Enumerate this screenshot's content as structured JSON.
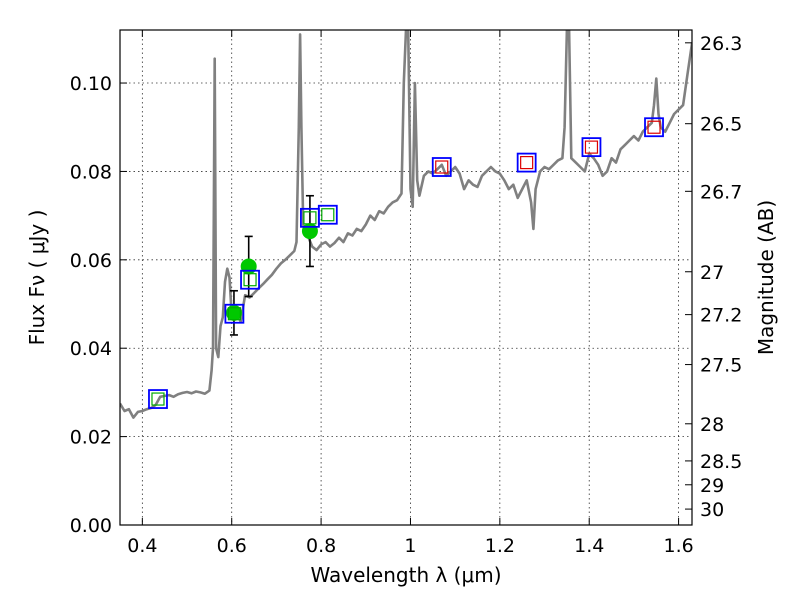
{
  "chart_data": {
    "type": "scatter",
    "title": "",
    "xlabel": "Wavelength  λ (μm)",
    "ylabel": "Flux  Fν  ( μJy )",
    "y2label": "Magnitude (AB)",
    "xlim": [
      0.35,
      1.63
    ],
    "ylim": [
      0.0,
      0.112
    ],
    "grid": true,
    "x_ticks": [
      0.4,
      0.6,
      0.8,
      1.0,
      1.2,
      1.4,
      1.6
    ],
    "x_tick_labels": [
      "0.4",
      "0.6",
      "0.8",
      "1",
      "1.2",
      "1.4",
      "1.6"
    ],
    "y_ticks": [
      0.0,
      0.02,
      0.04,
      0.06,
      0.08,
      0.1
    ],
    "y_tick_labels": [
      "0.00",
      "0.02",
      "0.04",
      "0.06",
      "0.08",
      "0.10"
    ],
    "y2_ticks": [
      {
        "label": "26.3",
        "flux": 0.1091
      },
      {
        "label": "26.5",
        "flux": 0.0908
      },
      {
        "label": "26.7",
        "flux": 0.0755
      },
      {
        "label": "27",
        "flux": 0.0573
      },
      {
        "label": "27.2",
        "flux": 0.0476
      },
      {
        "label": "27.5",
        "flux": 0.0363
      },
      {
        "label": "28",
        "flux": 0.0229
      },
      {
        "label": "28.5",
        "flux": 0.0145
      },
      {
        "label": "29",
        "flux": 0.0091
      },
      {
        "label": "30",
        "flux": 0.0036
      }
    ],
    "series": [
      {
        "kind": "line",
        "color": "#808080",
        "points": [
          [
            0.35,
            0.0275
          ],
          [
            0.36,
            0.0258
          ],
          [
            0.37,
            0.0262
          ],
          [
            0.38,
            0.0243
          ],
          [
            0.39,
            0.0256
          ],
          [
            0.4,
            0.0258
          ],
          [
            0.41,
            0.0262
          ],
          [
            0.42,
            0.0265
          ],
          [
            0.43,
            0.0272
          ],
          [
            0.44,
            0.029
          ],
          [
            0.45,
            0.0292
          ],
          [
            0.46,
            0.0294
          ],
          [
            0.47,
            0.029
          ],
          [
            0.48,
            0.0296
          ],
          [
            0.49,
            0.0299
          ],
          [
            0.5,
            0.0301
          ],
          [
            0.51,
            0.0298
          ],
          [
            0.52,
            0.0302
          ],
          [
            0.53,
            0.03
          ],
          [
            0.54,
            0.0297
          ],
          [
            0.55,
            0.0304
          ],
          [
            0.555,
            0.035
          ],
          [
            0.558,
            0.04
          ],
          [
            0.56,
            0.07
          ],
          [
            0.562,
            0.1055
          ],
          [
            0.565,
            0.04
          ],
          [
            0.57,
            0.038
          ],
          [
            0.575,
            0.045
          ],
          [
            0.58,
            0.047
          ],
          [
            0.585,
            0.055
          ],
          [
            0.59,
            0.058
          ],
          [
            0.595,
            0.056
          ],
          [
            0.6,
            0.0475
          ],
          [
            0.61,
            0.048
          ],
          [
            0.62,
            0.046
          ],
          [
            0.63,
            0.052
          ],
          [
            0.64,
            0.0515
          ],
          [
            0.65,
            0.0525
          ],
          [
            0.66,
            0.0535
          ],
          [
            0.67,
            0.0545
          ],
          [
            0.68,
            0.0556
          ],
          [
            0.69,
            0.0566
          ],
          [
            0.7,
            0.058
          ],
          [
            0.71,
            0.0592
          ],
          [
            0.72,
            0.06
          ],
          [
            0.73,
            0.061
          ],
          [
            0.74,
            0.062
          ],
          [
            0.745,
            0.064
          ],
          [
            0.75,
            0.09
          ],
          [
            0.753,
            0.111
          ],
          [
            0.756,
            0.09
          ],
          [
            0.76,
            0.068
          ],
          [
            0.77,
            0.0655
          ],
          [
            0.78,
            0.063
          ],
          [
            0.79,
            0.0622
          ],
          [
            0.8,
            0.0635
          ],
          [
            0.81,
            0.064
          ],
          [
            0.82,
            0.063
          ],
          [
            0.83,
            0.0638
          ],
          [
            0.84,
            0.065
          ],
          [
            0.85,
            0.064
          ],
          [
            0.86,
            0.066
          ],
          [
            0.87,
            0.0655
          ],
          [
            0.88,
            0.067
          ],
          [
            0.89,
            0.0665
          ],
          [
            0.9,
            0.068
          ],
          [
            0.91,
            0.07
          ],
          [
            0.92,
            0.069
          ],
          [
            0.93,
            0.071
          ],
          [
            0.94,
            0.0705
          ],
          [
            0.95,
            0.072
          ],
          [
            0.96,
            0.073
          ],
          [
            0.97,
            0.0735
          ],
          [
            0.98,
            0.075
          ],
          [
            0.985,
            0.1
          ],
          [
            0.99,
            0.112
          ],
          [
            0.995,
            0.112
          ],
          [
            1.0,
            0.076
          ],
          [
            1.005,
            0.072
          ],
          [
            1.01,
            0.1
          ],
          [
            1.015,
            0.078
          ],
          [
            1.02,
            0.0745
          ],
          [
            1.03,
            0.079
          ],
          [
            1.04,
            0.08
          ],
          [
            1.05,
            0.0795
          ],
          [
            1.06,
            0.0805
          ],
          [
            1.07,
            0.0815
          ],
          [
            1.08,
            0.079
          ],
          [
            1.09,
            0.08
          ],
          [
            1.1,
            0.081
          ],
          [
            1.11,
            0.0795
          ],
          [
            1.12,
            0.076
          ],
          [
            1.13,
            0.078
          ],
          [
            1.14,
            0.077
          ],
          [
            1.15,
            0.0765
          ],
          [
            1.16,
            0.079
          ],
          [
            1.17,
            0.08
          ],
          [
            1.18,
            0.081
          ],
          [
            1.19,
            0.08
          ],
          [
            1.2,
            0.0795
          ],
          [
            1.21,
            0.078
          ],
          [
            1.22,
            0.076
          ],
          [
            1.23,
            0.077
          ],
          [
            1.24,
            0.074
          ],
          [
            1.25,
            0.076
          ],
          [
            1.26,
            0.078
          ],
          [
            1.27,
            0.073
          ],
          [
            1.275,
            0.067
          ],
          [
            1.28,
            0.076
          ],
          [
            1.29,
            0.08
          ],
          [
            1.3,
            0.081
          ],
          [
            1.31,
            0.0805
          ],
          [
            1.32,
            0.0815
          ],
          [
            1.33,
            0.0825
          ],
          [
            1.34,
            0.083
          ],
          [
            1.345,
            0.09
          ],
          [
            1.35,
            0.112
          ],
          [
            1.355,
            0.112
          ],
          [
            1.36,
            0.083
          ],
          [
            1.37,
            0.082
          ],
          [
            1.38,
            0.081
          ],
          [
            1.39,
            0.08
          ],
          [
            1.4,
            0.084
          ],
          [
            1.41,
            0.083
          ],
          [
            1.42,
            0.0815
          ],
          [
            1.43,
            0.079
          ],
          [
            1.44,
            0.08
          ],
          [
            1.45,
            0.083
          ],
          [
            1.46,
            0.082
          ],
          [
            1.47,
            0.085
          ],
          [
            1.48,
            0.086
          ],
          [
            1.49,
            0.087
          ],
          [
            1.5,
            0.088
          ],
          [
            1.51,
            0.087
          ],
          [
            1.52,
            0.089
          ],
          [
            1.53,
            0.09
          ],
          [
            1.54,
            0.091
          ],
          [
            1.545,
            0.095
          ],
          [
            1.55,
            0.101
          ],
          [
            1.555,
            0.093
          ],
          [
            1.56,
            0.09
          ],
          [
            1.57,
            0.089
          ],
          [
            1.58,
            0.091
          ],
          [
            1.59,
            0.093
          ],
          [
            1.6,
            0.094
          ],
          [
            1.61,
            0.095
          ],
          [
            1.62,
            0.102
          ],
          [
            1.63,
            0.109
          ]
        ]
      },
      {
        "kind": "points_with_error",
        "marker": "circle",
        "color": "#00c800",
        "points": [
          {
            "x": 0.605,
            "y": 0.048,
            "err": 0.005
          },
          {
            "x": 0.638,
            "y": 0.0585,
            "err": 0.0068
          },
          {
            "x": 0.775,
            "y": 0.0665,
            "err": 0.008
          }
        ]
      },
      {
        "kind": "points",
        "marker": "square",
        "edge_color": "#0000ff",
        "inner_color": "#00aa00",
        "points": [
          {
            "x": 0.435,
            "y": 0.0285
          },
          {
            "x": 0.606,
            "y": 0.0478
          },
          {
            "x": 0.641,
            "y": 0.0555
          },
          {
            "x": 0.775,
            "y": 0.0695
          },
          {
            "x": 0.815,
            "y": 0.0702
          }
        ]
      },
      {
        "kind": "points",
        "marker": "square",
        "edge_color": "#0000ff",
        "inner_color": "#dd0000",
        "points": [
          {
            "x": 1.07,
            "y": 0.081
          },
          {
            "x": 1.26,
            "y": 0.082
          },
          {
            "x": 1.405,
            "y": 0.0855
          },
          {
            "x": 1.545,
            "y": 0.09
          }
        ]
      }
    ]
  }
}
